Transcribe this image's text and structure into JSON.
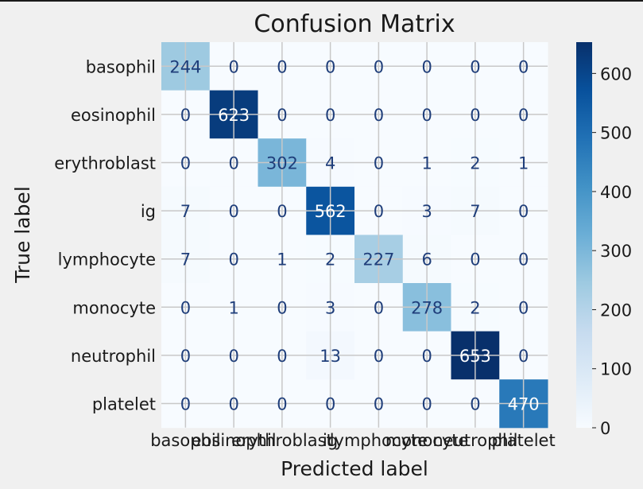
{
  "chart_data": {
    "type": "heatmap",
    "title": "Confusion Matrix",
    "xlabel": "Predicted label",
    "ylabel": "True label",
    "classes": [
      "basophil",
      "eosinophil",
      "erythroblast",
      "ig",
      "lymphocyte",
      "monocyte",
      "neutrophil",
      "platelet"
    ],
    "matrix": [
      [
        244,
        0,
        0,
        0,
        0,
        0,
        0,
        0
      ],
      [
        0,
        623,
        0,
        0,
        0,
        0,
        0,
        0
      ],
      [
        0,
        0,
        302,
        4,
        0,
        1,
        2,
        1
      ],
      [
        7,
        0,
        0,
        562,
        0,
        3,
        7,
        0
      ],
      [
        7,
        0,
        1,
        2,
        227,
        6,
        0,
        0
      ],
      [
        0,
        1,
        0,
        3,
        0,
        278,
        2,
        0
      ],
      [
        0,
        0,
        0,
        13,
        0,
        0,
        653,
        0
      ],
      [
        0,
        0,
        0,
        0,
        0,
        0,
        0,
        470
      ]
    ],
    "colormap": "Blues",
    "colorbar": {
      "ticks": [
        0,
        100,
        200,
        300,
        400,
        500,
        600
      ],
      "vmin": 0,
      "vmax": 653
    },
    "grid": true
  },
  "colors": {
    "background": "#f0f0f0",
    "grid": "#c8c8c8",
    "text": "#1a1a1a",
    "dark_text": "#1f3e7a",
    "light_text": "#ffffff"
  }
}
